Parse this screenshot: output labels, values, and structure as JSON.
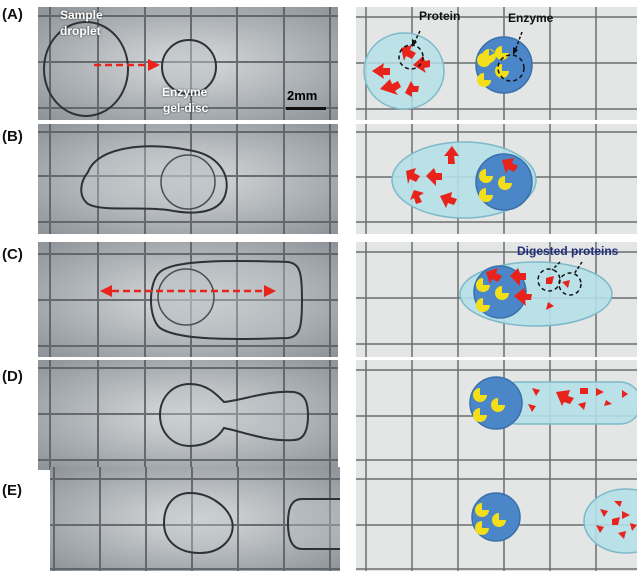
{
  "rows": [
    {
      "label": "(A)"
    },
    {
      "label": "(B)"
    },
    {
      "label": "(C)"
    },
    {
      "label": "(D)"
    },
    {
      "label": "(E)"
    }
  ],
  "annotations": {
    "sample_droplet_1": "Sample",
    "sample_droplet_2": "droplet",
    "enzyme_gel_disc_1": "Enzyme",
    "enzyme_gel_disc_2": "gel-disc",
    "scale_bar": "2mm",
    "protein": "Protein",
    "enzyme": "Enzyme",
    "digested_proteins": "Digested proteins"
  },
  "colors": {
    "photo_bg": "#c9cdd0",
    "schematic_bg": "#e3e6e4",
    "grid_line": "#5a5e62",
    "droplet_fill": "#b5dfe8",
    "gel_disc_fill": "#4a86c8",
    "enzyme": "#f2df1a",
    "protein": "#e8231c",
    "arrow": "#e8231c",
    "digested_label": "#1f2d7a"
  }
}
